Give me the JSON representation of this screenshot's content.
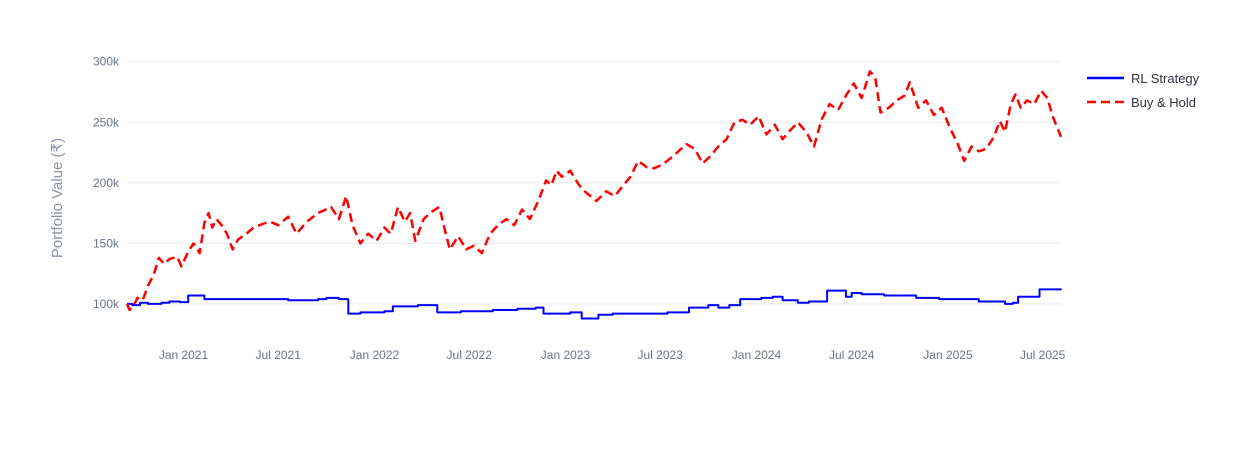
{
  "chart_data": {
    "type": "line",
    "title": "",
    "xlabel": "",
    "ylabel": "Portfolio Value (₹)",
    "x_range": [
      "2020-09-15",
      "2025-08-05"
    ],
    "ylim": [
      76000,
      308000
    ],
    "y_ticks": [
      100000,
      150000,
      200000,
      250000,
      300000
    ],
    "y_tick_labels": [
      "100k",
      "150k",
      "200k",
      "250k",
      "300k"
    ],
    "x_ticks": [
      "2021-01-01",
      "2021-07-01",
      "2022-01-01",
      "2022-07-01",
      "2023-01-01",
      "2023-07-01",
      "2024-01-01",
      "2024-07-01",
      "2025-01-01",
      "2025-07-01"
    ],
    "x_tick_labels": [
      "Jan 2021",
      "Jul 2021",
      "Jan 2022",
      "Jul 2022",
      "Jan 2023",
      "Jul 2023",
      "Jan 2024",
      "Jul 2024",
      "Jan 2025",
      "Jul 2025"
    ],
    "grid": true,
    "legend_position": "top-right",
    "series": [
      {
        "name": "RL Strategy",
        "color": "#0000ff",
        "dash": "solid",
        "step": true,
        "points": [
          [
            "2020-09-15",
            100000
          ],
          [
            "2020-09-25",
            99000
          ],
          [
            "2020-10-10",
            101000
          ],
          [
            "2020-10-25",
            100000
          ],
          [
            "2020-11-20",
            101000
          ],
          [
            "2020-12-05",
            102000
          ],
          [
            "2020-12-25",
            101500
          ],
          [
            "2021-01-10",
            107000
          ],
          [
            "2021-02-10",
            104000
          ],
          [
            "2021-07-20",
            103000
          ],
          [
            "2021-09-15",
            104000
          ],
          [
            "2021-10-01",
            105000
          ],
          [
            "2021-10-25",
            104000
          ],
          [
            "2021-11-12",
            92000
          ],
          [
            "2021-12-05",
            93000
          ],
          [
            "2022-01-20",
            94000
          ],
          [
            "2022-02-05",
            98000
          ],
          [
            "2022-03-25",
            99000
          ],
          [
            "2022-05-01",
            93000
          ],
          [
            "2022-06-15",
            94000
          ],
          [
            "2022-08-15",
            95000
          ],
          [
            "2022-10-01",
            96000
          ],
          [
            "2022-11-05",
            97000
          ],
          [
            "2022-11-20",
            92000
          ],
          [
            "2023-01-10",
            93000
          ],
          [
            "2023-02-01",
            88000
          ],
          [
            "2023-03-05",
            91000
          ],
          [
            "2023-04-01",
            92000
          ],
          [
            "2023-05-15",
            92000
          ],
          [
            "2023-07-15",
            93000
          ],
          [
            "2023-08-25",
            97000
          ],
          [
            "2023-10-01",
            99000
          ],
          [
            "2023-10-20",
            97000
          ],
          [
            "2023-11-10",
            99000
          ],
          [
            "2023-12-01",
            104000
          ],
          [
            "2024-01-10",
            105000
          ],
          [
            "2024-02-01",
            106000
          ],
          [
            "2024-02-20",
            103000
          ],
          [
            "2024-03-20",
            101000
          ],
          [
            "2024-04-10",
            102000
          ],
          [
            "2024-05-15",
            111000
          ],
          [
            "2024-06-20",
            106000
          ],
          [
            "2024-07-01",
            109000
          ],
          [
            "2024-07-20",
            108000
          ],
          [
            "2024-09-01",
            107000
          ],
          [
            "2024-11-01",
            105000
          ],
          [
            "2024-12-15",
            104000
          ],
          [
            "2025-03-01",
            102000
          ],
          [
            "2025-04-20",
            100000
          ],
          [
            "2025-05-05",
            101000
          ],
          [
            "2025-05-15",
            106000
          ],
          [
            "2025-06-25",
            112000
          ],
          [
            "2025-08-05",
            112500
          ]
        ]
      },
      {
        "name": "Buy & Hold",
        "color": "#ff0000",
        "dash": "dashed",
        "step": false,
        "points": [
          [
            "2020-09-15",
            100000
          ],
          [
            "2020-09-20",
            95000
          ],
          [
            "2020-09-28",
            99000
          ],
          [
            "2020-10-05",
            105000
          ],
          [
            "2020-10-15",
            103000
          ],
          [
            "2020-10-25",
            115000
          ],
          [
            "2020-11-05",
            124000
          ],
          [
            "2020-11-15",
            138000
          ],
          [
            "2020-11-25",
            133000
          ],
          [
            "2020-12-05",
            137000
          ],
          [
            "2020-12-20",
            139000
          ],
          [
            "2020-12-28",
            131000
          ],
          [
            "2021-01-10",
            143000
          ],
          [
            "2021-01-20",
            150000
          ],
          [
            "2021-02-01",
            142000
          ],
          [
            "2021-02-10",
            167000
          ],
          [
            "2021-02-18",
            175000
          ],
          [
            "2021-02-25",
            163000
          ],
          [
            "2021-03-05",
            170000
          ],
          [
            "2021-03-15",
            165000
          ],
          [
            "2021-03-25",
            158000
          ],
          [
            "2021-04-05",
            145000
          ],
          [
            "2021-04-15",
            153000
          ],
          [
            "2021-05-01",
            158000
          ],
          [
            "2021-05-15",
            163000
          ],
          [
            "2021-06-01",
            166000
          ],
          [
            "2021-06-15",
            168000
          ],
          [
            "2021-07-01",
            165000
          ],
          [
            "2021-07-20",
            172000
          ],
          [
            "2021-08-05",
            158000
          ],
          [
            "2021-08-25",
            168000
          ],
          [
            "2021-09-15",
            175000
          ],
          [
            "2021-10-10",
            180000
          ],
          [
            "2021-10-25",
            170000
          ],
          [
            "2021-11-08",
            189000
          ],
          [
            "2021-11-20",
            165000
          ],
          [
            "2021-12-05",
            150000
          ],
          [
            "2021-12-20",
            158000
          ],
          [
            "2022-01-05",
            152000
          ],
          [
            "2022-01-20",
            163000
          ],
          [
            "2022-02-01",
            158000
          ],
          [
            "2022-02-15",
            180000
          ],
          [
            "2022-02-28",
            168000
          ],
          [
            "2022-03-10",
            175000
          ],
          [
            "2022-03-20",
            152000
          ],
          [
            "2022-04-05",
            170000
          ],
          [
            "2022-04-20",
            176000
          ],
          [
            "2022-05-05",
            180000
          ],
          [
            "2022-05-15",
            162000
          ],
          [
            "2022-05-25",
            145000
          ],
          [
            "2022-06-10",
            156000
          ],
          [
            "2022-06-25",
            145000
          ],
          [
            "2022-07-10",
            148000
          ],
          [
            "2022-07-25",
            142000
          ],
          [
            "2022-08-10",
            158000
          ],
          [
            "2022-08-25",
            165000
          ],
          [
            "2022-09-10",
            170000
          ],
          [
            "2022-09-25",
            165000
          ],
          [
            "2022-10-10",
            178000
          ],
          [
            "2022-10-25",
            170000
          ],
          [
            "2022-11-10",
            185000
          ],
          [
            "2022-11-25",
            202000
          ],
          [
            "2022-12-05",
            198000
          ],
          [
            "2022-12-15",
            210000
          ],
          [
            "2022-12-25",
            205000
          ],
          [
            "2023-01-10",
            210000
          ],
          [
            "2023-01-20",
            203000
          ],
          [
            "2023-02-01",
            195000
          ],
          [
            "2023-02-15",
            190000
          ],
          [
            "2023-03-01",
            185000
          ],
          [
            "2023-03-20",
            193000
          ],
          [
            "2023-04-05",
            189000
          ],
          [
            "2023-04-20",
            197000
          ],
          [
            "2023-05-05",
            205000
          ],
          [
            "2023-05-20",
            218000
          ],
          [
            "2023-06-05",
            213000
          ],
          [
            "2023-06-20",
            212000
          ],
          [
            "2023-07-05",
            215000
          ],
          [
            "2023-07-20",
            220000
          ],
          [
            "2023-08-05",
            226000
          ],
          [
            "2023-08-20",
            232000
          ],
          [
            "2023-09-05",
            228000
          ],
          [
            "2023-09-20",
            216000
          ],
          [
            "2023-10-05",
            222000
          ],
          [
            "2023-10-20",
            230000
          ],
          [
            "2023-11-05",
            236000
          ],
          [
            "2023-11-20",
            250000
          ],
          [
            "2023-12-05",
            252000
          ],
          [
            "2023-12-20",
            248000
          ],
          [
            "2024-01-05",
            255000
          ],
          [
            "2024-01-20",
            240000
          ],
          [
            "2024-02-05",
            248000
          ],
          [
            "2024-02-20",
            236000
          ],
          [
            "2024-03-05",
            243000
          ],
          [
            "2024-03-20",
            250000
          ],
          [
            "2024-04-05",
            242000
          ],
          [
            "2024-04-20",
            230000
          ],
          [
            "2024-05-05",
            253000
          ],
          [
            "2024-05-20",
            265000
          ],
          [
            "2024-06-05",
            260000
          ],
          [
            "2024-06-20",
            272000
          ],
          [
            "2024-07-05",
            282000
          ],
          [
            "2024-07-20",
            270000
          ],
          [
            "2024-08-05",
            292000
          ],
          [
            "2024-08-15",
            287000
          ],
          [
            "2024-08-25",
            258000
          ],
          [
            "2024-09-10",
            262000
          ],
          [
            "2024-09-25",
            268000
          ],
          [
            "2024-10-10",
            272000
          ],
          [
            "2024-10-20",
            283000
          ],
          [
            "2024-11-05",
            262000
          ],
          [
            "2024-11-20",
            268000
          ],
          [
            "2024-12-05",
            256000
          ],
          [
            "2024-12-20",
            262000
          ],
          [
            "2025-01-05",
            245000
          ],
          [
            "2025-01-20",
            232000
          ],
          [
            "2025-02-01",
            218000
          ],
          [
            "2025-02-15",
            230000
          ],
          [
            "2025-03-01",
            226000
          ],
          [
            "2025-03-15",
            228000
          ],
          [
            "2025-03-30",
            238000
          ],
          [
            "2025-04-10",
            251000
          ],
          [
            "2025-04-20",
            242000
          ],
          [
            "2025-05-01",
            265000
          ],
          [
            "2025-05-10",
            273000
          ],
          [
            "2025-05-20",
            262000
          ],
          [
            "2025-06-01",
            268000
          ],
          [
            "2025-06-15",
            265000
          ],
          [
            "2025-06-28",
            276000
          ],
          [
            "2025-07-10",
            270000
          ],
          [
            "2025-07-20",
            255000
          ],
          [
            "2025-08-05",
            238000
          ]
        ]
      }
    ]
  }
}
